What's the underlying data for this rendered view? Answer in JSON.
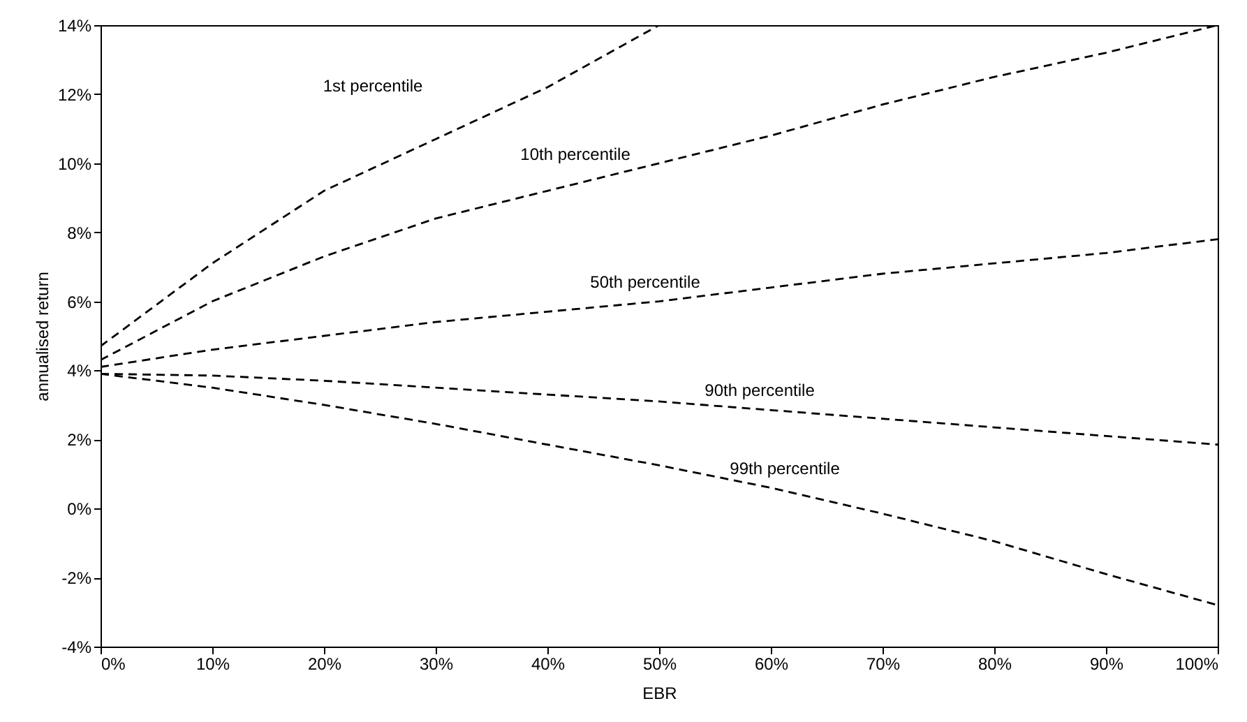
{
  "chart_data": {
    "type": "line",
    "xlabel": "EBR",
    "ylabel": "annualised return",
    "x": [
      0,
      10,
      20,
      30,
      40,
      50,
      60,
      70,
      80,
      90,
      100
    ],
    "series": [
      {
        "name": "1st percentile",
        "color": "#000000",
        "x": [
          0,
          10,
          20,
          30,
          40,
          50
        ],
        "values": [
          4.7,
          7.1,
          9.2,
          10.7,
          12.2,
          14.0
        ]
      },
      {
        "name": "10th percentile",
        "color": "#000000",
        "values": [
          4.3,
          6.0,
          7.3,
          8.4,
          9.2,
          10.0,
          10.8,
          11.7,
          12.5,
          13.2,
          14.0
        ]
      },
      {
        "name": "50th percentile",
        "color": "#000000",
        "values": [
          4.1,
          4.6,
          5.0,
          5.4,
          5.7,
          6.0,
          6.4,
          6.8,
          7.1,
          7.4,
          7.8
        ]
      },
      {
        "name": "90th percentile",
        "color": "#000000",
        "values": [
          3.9,
          3.85,
          3.7,
          3.5,
          3.3,
          3.1,
          2.85,
          2.6,
          2.35,
          2.1,
          1.85
        ]
      },
      {
        "name": "99th percentile",
        "color": "#000000",
        "values": [
          3.9,
          3.5,
          3.0,
          2.45,
          1.85,
          1.25,
          0.6,
          -0.15,
          -0.95,
          -1.9,
          -2.8
        ]
      }
    ],
    "xlim": [
      0,
      100
    ],
    "ylim": [
      -4,
      14
    ],
    "xticks": [
      {
        "value": 0,
        "label": "0%"
      },
      {
        "value": 10,
        "label": "10%"
      },
      {
        "value": 20,
        "label": "20%"
      },
      {
        "value": 30,
        "label": "30%"
      },
      {
        "value": 40,
        "label": "40%"
      },
      {
        "value": 50,
        "label": "50%"
      },
      {
        "value": 60,
        "label": "60%"
      },
      {
        "value": 70,
        "label": "70%"
      },
      {
        "value": 80,
        "label": "80%"
      },
      {
        "value": 90,
        "label": "90%"
      },
      {
        "value": 100,
        "label": "100%"
      }
    ],
    "yticks": [
      {
        "value": -4,
        "label": "-4%"
      },
      {
        "value": -2,
        "label": "-2%"
      },
      {
        "value": 0,
        "label": "0%"
      },
      {
        "value": 2,
        "label": "2%"
      },
      {
        "value": 4,
        "label": "4%"
      },
      {
        "value": 6,
        "label": "6%"
      },
      {
        "value": 8,
        "label": "8%"
      },
      {
        "value": 10,
        "label": "10%"
      },
      {
        "value": 12,
        "label": "12%"
      },
      {
        "value": 14,
        "label": "14%"
      }
    ],
    "grid": false,
    "marker": "none",
    "line_style": "dashed"
  }
}
